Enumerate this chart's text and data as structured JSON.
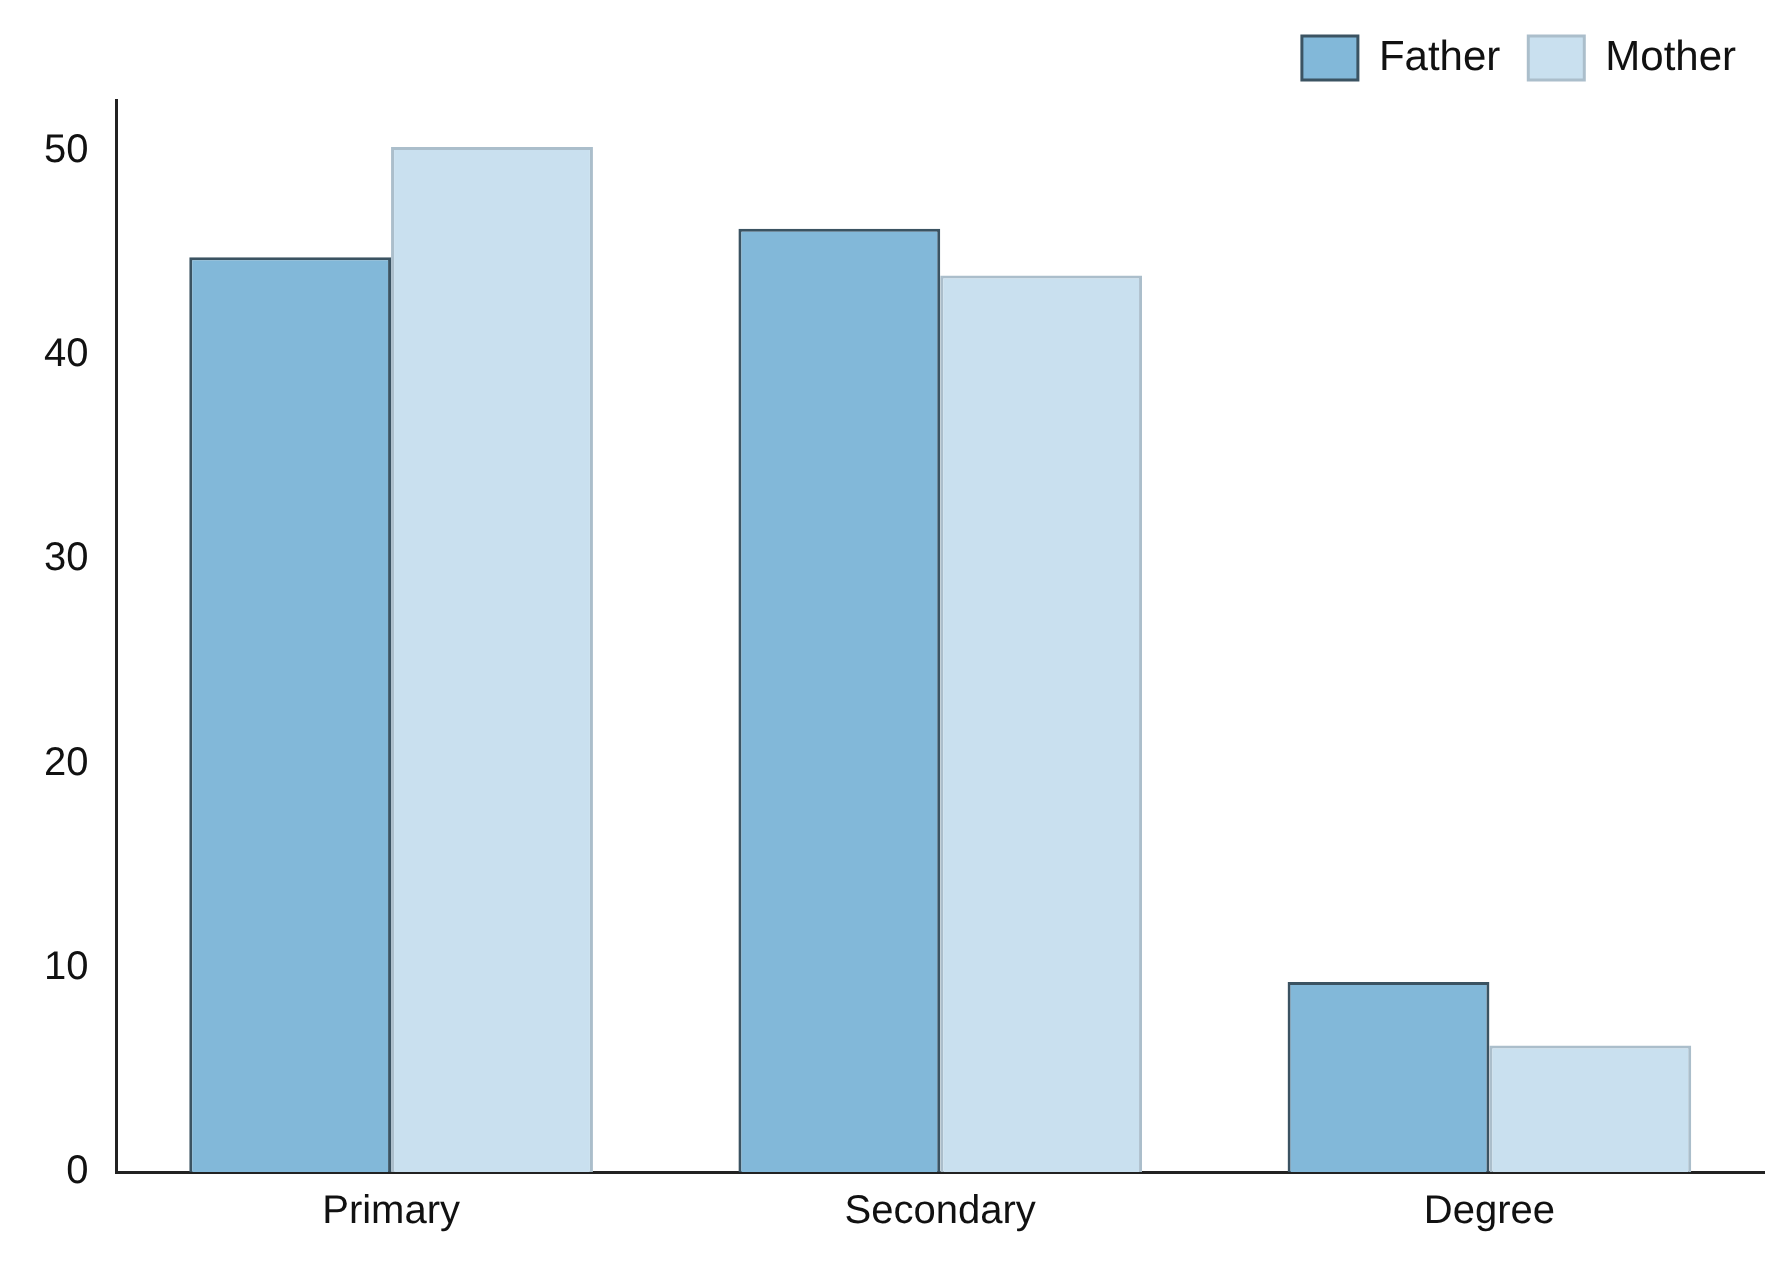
{
  "chart_data": {
    "type": "bar",
    "categories": [
      "Primary",
      "Secondary",
      "Degree"
    ],
    "series": [
      {
        "name": "Father",
        "color": "#82b8d9",
        "values": [
          44.8,
          46.2,
          9.3
        ]
      },
      {
        "name": "Mother",
        "color": "#c9e0ef",
        "values": [
          50.2,
          43.9,
          6.2
        ]
      }
    ],
    "ylim": [
      0,
      52.5
    ],
    "yticks": [
      0,
      10,
      20,
      30,
      40,
      50
    ],
    "grid": false,
    "legend": "top right"
  }
}
